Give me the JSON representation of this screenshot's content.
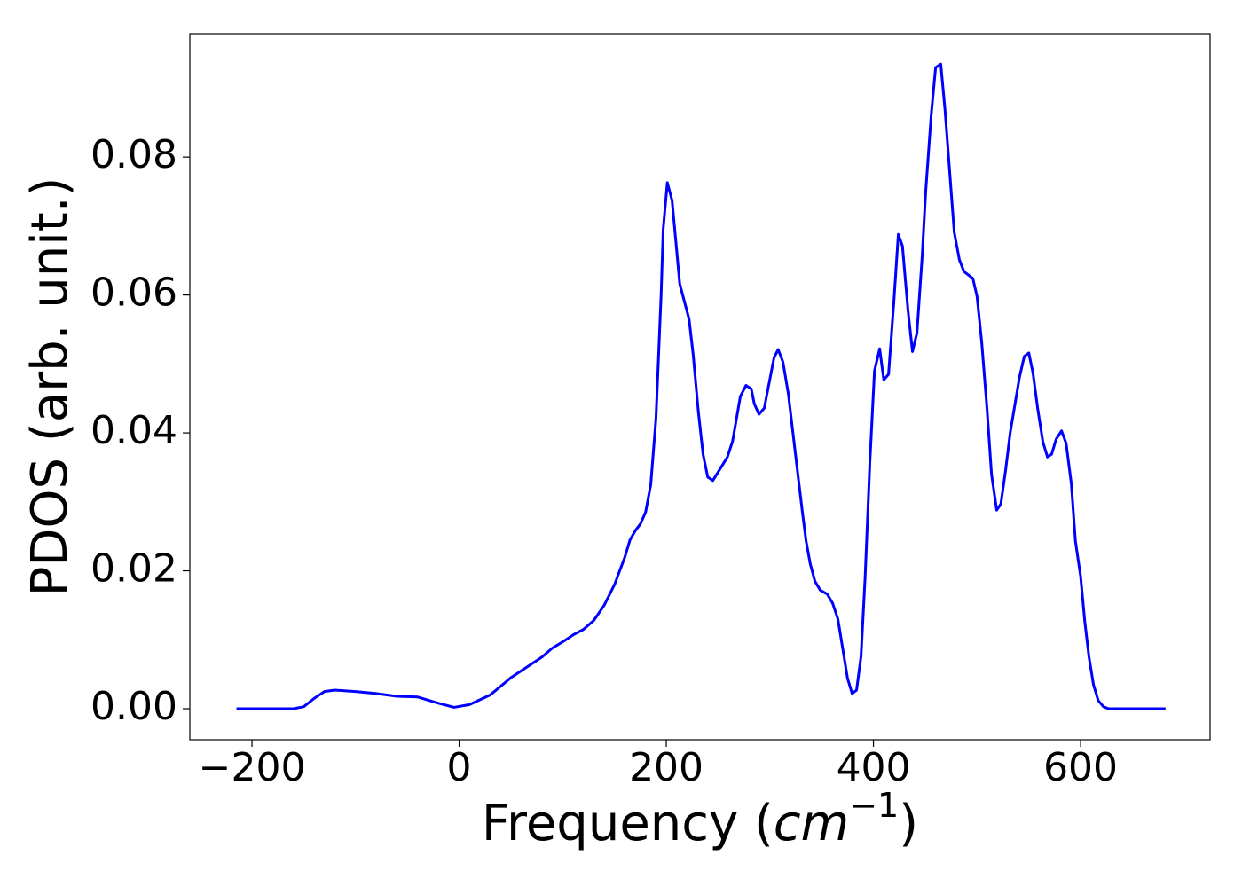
{
  "chart_data": {
    "type": "line",
    "xlabel": [
      "Frequency (",
      "cm",
      "−1",
      ")"
    ],
    "ylabel": "PDOS (arb. unit.)",
    "xlim": [
      -260,
      725
    ],
    "ylim": [
      -0.0045,
      0.0979
    ],
    "xticks": [
      {
        "value": -200,
        "label": "−200"
      },
      0,
      200,
      400,
      600
    ],
    "yticks": [
      {
        "value": 0,
        "label": "0.00"
      },
      {
        "value": 0.02,
        "label": "0.02"
      },
      {
        "value": 0.04,
        "label": "0.04"
      },
      {
        "value": 0.06,
        "label": "0.06"
      },
      {
        "value": 0.08,
        "label": "0.08"
      }
    ],
    "grid": false,
    "x": [
      -215,
      -160,
      -150,
      -140,
      -130,
      -120,
      -100,
      -80,
      -60,
      -40,
      -20,
      -5,
      10,
      30,
      50,
      60,
      70,
      80,
      90,
      100,
      110,
      120,
      130,
      140,
      150,
      160,
      165,
      170,
      175,
      180,
      185,
      190,
      195,
      197,
      201,
      205.6,
      213,
      222,
      226,
      231,
      235.5,
      240,
      245,
      259,
      264,
      271.5,
      277,
      282,
      285,
      289.5,
      294.6,
      304,
      308,
      312.6,
      317.8,
      325.5,
      331.5,
      335,
      339,
      343.5,
      348.6,
      355.5,
      360.6,
      365.7,
      370.9,
      375,
      379.4,
      383.7,
      388,
      392,
      396.6,
      401,
      406,
      410,
      414.6,
      419.7,
      424,
      428,
      433.4,
      437.7,
      442,
      447,
      450.5,
      455.7,
      460,
      465,
      469,
      473.7,
      478,
      483,
      487.4,
      496,
      500,
      504.5,
      509.6,
      514,
      519,
      523,
      527.6,
      532,
      537,
      541,
      545.6,
      550,
      554,
      558.5,
      563.6,
      568,
      572,
      576.4,
      581.6,
      586,
      591,
      595,
      600,
      604,
      608,
      612.4,
      617,
      622,
      627,
      682
    ],
    "series": [
      {
        "name": "PDOS",
        "color": "#0000ff",
        "values": [
          0,
          0,
          0.0003,
          0.0015,
          0.0025,
          0.0027,
          0.0025,
          0.0022,
          0.0018,
          0.0017,
          0.0008,
          0.0002,
          0.0006,
          0.002,
          0.0045,
          0.0055,
          0.0065,
          0.0075,
          0.0088,
          0.0097,
          0.0107,
          0.0115,
          0.0128,
          0.015,
          0.018,
          0.022,
          0.0245,
          0.0258,
          0.0268,
          0.0285,
          0.0325,
          0.042,
          0.06,
          0.0695,
          0.0763,
          0.0737,
          0.0616,
          0.0565,
          0.0513,
          0.043,
          0.0369,
          0.0336,
          0.0331,
          0.0365,
          0.0388,
          0.0453,
          0.0469,
          0.0464,
          0.0442,
          0.0427,
          0.0436,
          0.0509,
          0.0521,
          0.0503,
          0.0457,
          0.0359,
          0.0284,
          0.0243,
          0.021,
          0.0185,
          0.0172,
          0.0166,
          0.0153,
          0.013,
          0.0082,
          0.0044,
          0.0022,
          0.0027,
          0.0076,
          0.0192,
          0.0359,
          0.049,
          0.0522,
          0.0477,
          0.0485,
          0.059,
          0.0688,
          0.0671,
          0.0577,
          0.0518,
          0.0545,
          0.0655,
          0.0751,
          0.086,
          0.093,
          0.0935,
          0.087,
          0.0777,
          0.0691,
          0.0651,
          0.0634,
          0.0624,
          0.0598,
          0.0532,
          0.0436,
          0.034,
          0.0288,
          0.0297,
          0.0346,
          0.04,
          0.0445,
          0.0481,
          0.0511,
          0.0516,
          0.0487,
          0.0436,
          0.0387,
          0.0365,
          0.0369,
          0.0391,
          0.0403,
          0.0385,
          0.0327,
          0.0243,
          0.0192,
          0.0127,
          0.0076,
          0.0035,
          0.0012,
          0.0003,
          0,
          0
        ]
      }
    ]
  }
}
